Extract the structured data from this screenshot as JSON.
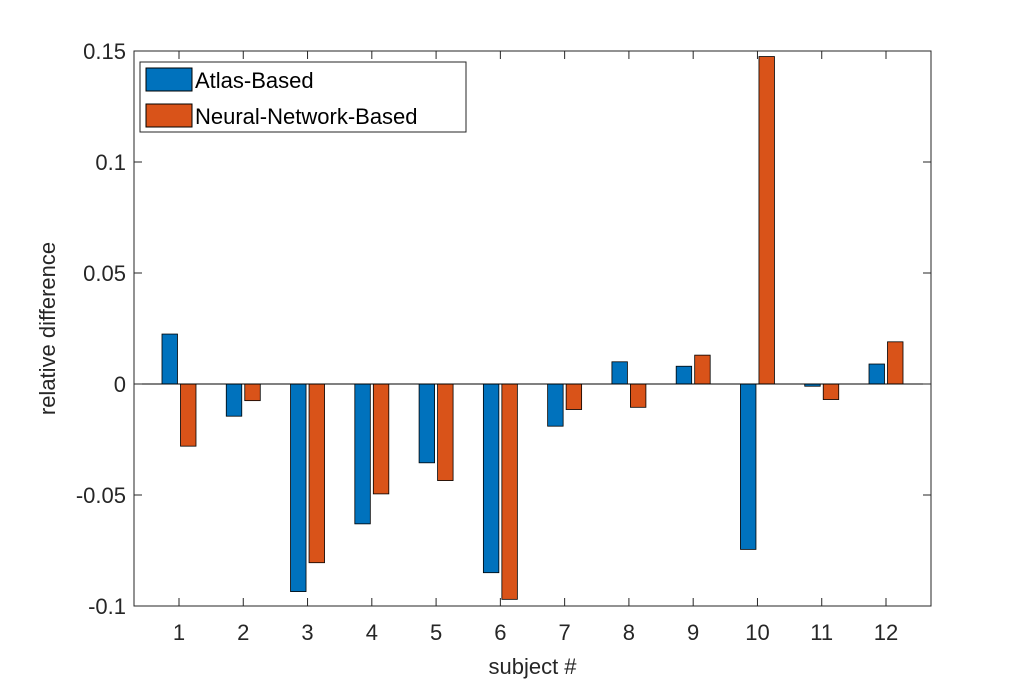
{
  "chart_data": {
    "type": "bar",
    "title": "",
    "xlabel": "subject #",
    "ylabel": "relative difference",
    "categories": [
      "1",
      "2",
      "3",
      "4",
      "5",
      "6",
      "7",
      "8",
      "9",
      "10",
      "11",
      "12"
    ],
    "ylim": [
      -0.1,
      0.15
    ],
    "yticks": [
      -0.1,
      -0.05,
      0,
      0.05,
      0.1,
      0.15
    ],
    "ytick_labels": [
      "-0.1",
      "-0.05",
      "0",
      "0.05",
      "0.1",
      "0.15"
    ],
    "legend_position": "top-left",
    "grid": false,
    "series": [
      {
        "name": "Atlas-Based",
        "color": "#0072BD",
        "values": [
          0.0225,
          -0.0145,
          -0.0935,
          -0.063,
          -0.0355,
          -0.085,
          -0.019,
          0.01,
          0.008,
          -0.0745,
          -0.001,
          0.009
        ]
      },
      {
        "name": "Neural-Network-Based",
        "color": "#D95319",
        "values": [
          -0.028,
          -0.0075,
          -0.0805,
          -0.0495,
          -0.0435,
          -0.097,
          -0.0115,
          -0.0105,
          0.013,
          0.1475,
          -0.007,
          0.019
        ]
      }
    ]
  }
}
